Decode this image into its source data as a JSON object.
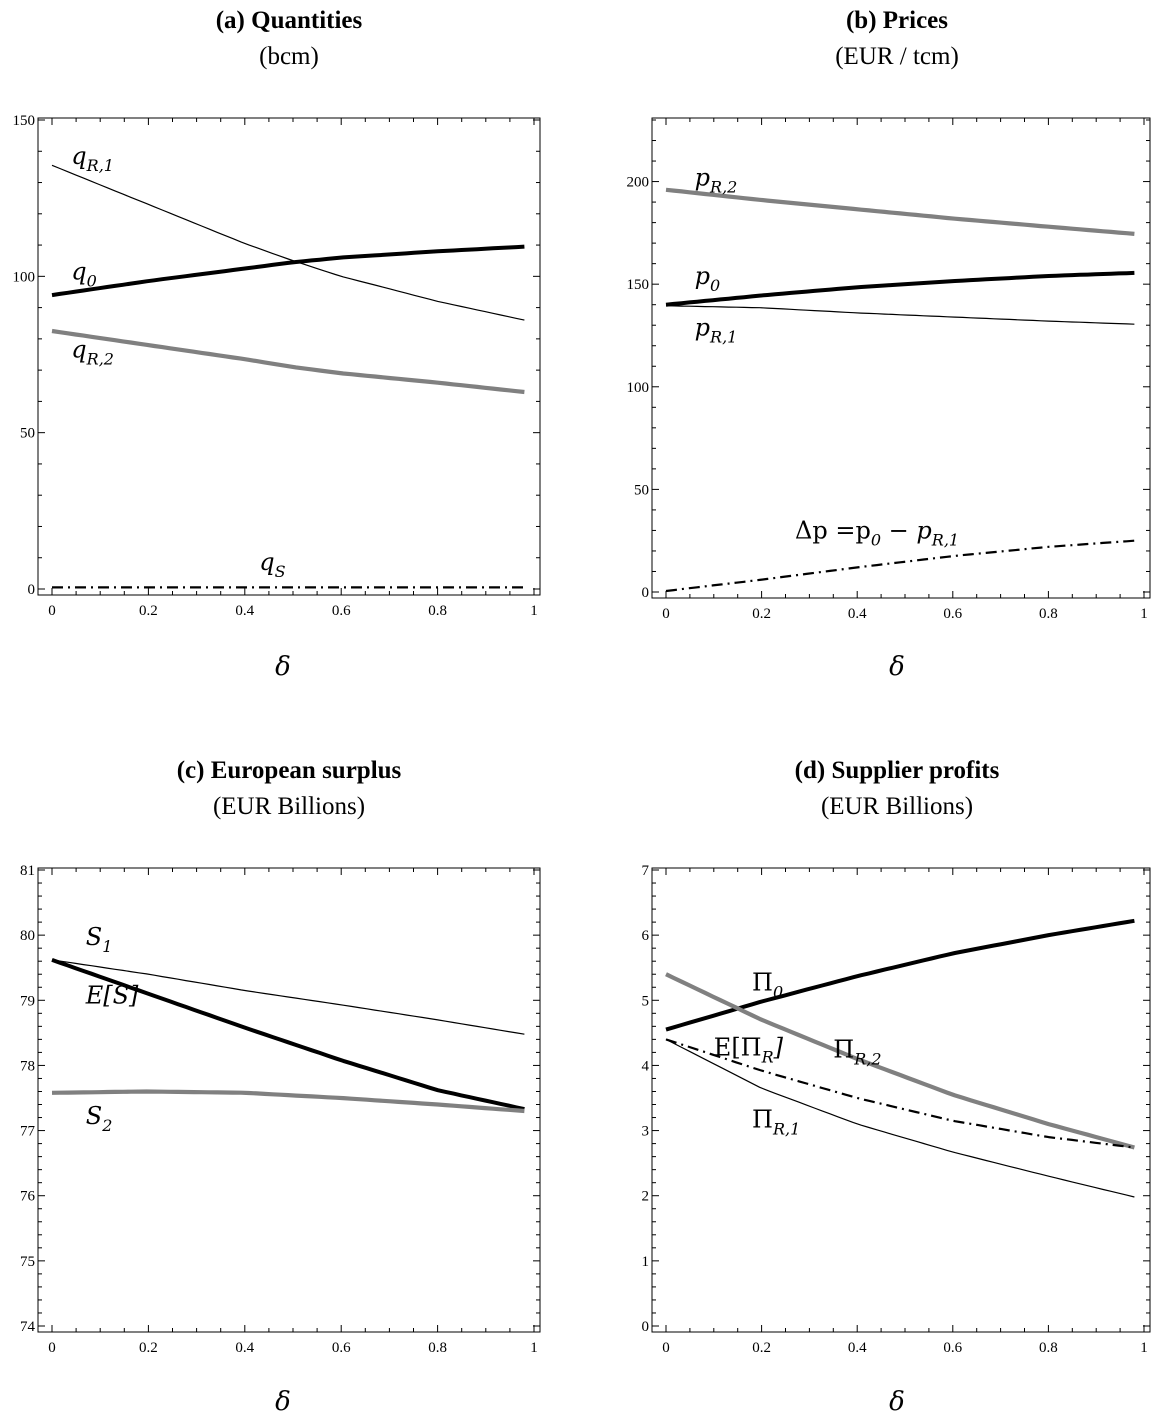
{
  "chart_data": [
    {
      "id": "a",
      "type": "line",
      "title": "(a) Quantities",
      "subtitle": "(bcm)",
      "xlabel": "δ",
      "xlim": [
        0,
        1
      ],
      "ylim": [
        0,
        150
      ],
      "xticks": [
        "0",
        "0.2",
        "0.4",
        "0.6",
        "0.8",
        "1"
      ],
      "yticks": [
        "0",
        "50",
        "100",
        "150"
      ],
      "series": [
        {
          "name": "q_{R,1}",
          "style": "thin",
          "color": "#000000",
          "x": [
            0,
            0.2,
            0.4,
            0.5,
            0.6,
            0.8,
            0.98
          ],
          "y": [
            135.5,
            123,
            110.5,
            105,
            100,
            92,
            86
          ]
        },
        {
          "name": "q_0",
          "style": "thick",
          "color": "#000000",
          "x": [
            0,
            0.2,
            0.4,
            0.5,
            0.6,
            0.8,
            0.98
          ],
          "y": [
            94,
            98.5,
            102.5,
            104.5,
            106,
            108,
            109.5
          ]
        },
        {
          "name": "q_{R,2}",
          "style": "gray",
          "color": "#808080",
          "x": [
            0,
            0.2,
            0.4,
            0.5,
            0.6,
            0.8,
            0.98
          ],
          "y": [
            82.5,
            78,
            73.5,
            71,
            69,
            66,
            63
          ]
        },
        {
          "name": "q_S",
          "style": "dashdot",
          "color": "#000000",
          "x": [
            0,
            0.98
          ],
          "y": [
            0.5,
            0.5
          ]
        }
      ],
      "annotations": [
        {
          "base": "q",
          "sub": "R,1",
          "x": 0.04,
          "y": 136
        },
        {
          "base": "q",
          "sub": "0",
          "x": 0.04,
          "y": 99
        },
        {
          "base": "q",
          "sub": "R,2",
          "x": 0.04,
          "y": 74
        },
        {
          "base": "q",
          "sub": "S",
          "x": 0.43,
          "y": 6
        }
      ]
    },
    {
      "id": "b",
      "type": "line",
      "title": "(b) Prices",
      "subtitle": "(EUR / tcm)",
      "xlabel": "δ",
      "xlim": [
        0,
        1
      ],
      "ylim": [
        0,
        230
      ],
      "xticks": [
        "0",
        "0.2",
        "0.4",
        "0.6",
        "0.8",
        "1"
      ],
      "yticks": [
        "0",
        "50",
        "100",
        "150",
        "200"
      ],
      "series": [
        {
          "name": "p_{R,2}",
          "style": "gray",
          "color": "#808080",
          "x": [
            0,
            0.2,
            0.4,
            0.6,
            0.8,
            0.98
          ],
          "y": [
            196,
            191,
            186.5,
            182,
            178,
            174.5
          ]
        },
        {
          "name": "p_0",
          "style": "thick",
          "color": "#000000",
          "x": [
            0,
            0.2,
            0.4,
            0.6,
            0.8,
            0.98
          ],
          "y": [
            140,
            144.5,
            148.5,
            151.5,
            154,
            155.5
          ]
        },
        {
          "name": "p_{R,1}",
          "style": "thin",
          "color": "#000000",
          "x": [
            0,
            0.2,
            0.4,
            0.6,
            0.8,
            0.98
          ],
          "y": [
            139.5,
            138.5,
            136,
            134,
            132,
            130.5
          ]
        },
        {
          "name": "Δp = p_0 − p_{R,1}",
          "style": "dashdot",
          "color": "#000000",
          "x": [
            0,
            0.2,
            0.4,
            0.6,
            0.8,
            0.98
          ],
          "y": [
            0.5,
            6,
            12,
            17.5,
            22,
            25
          ]
        }
      ],
      "annotations": [
        {
          "base": "p",
          "sub": "R,2",
          "x": 0.06,
          "y": 198
        },
        {
          "base": "p",
          "sub": "0",
          "x": 0.06,
          "y": 150
        },
        {
          "base": "p",
          "sub": "R,1",
          "x": 0.06,
          "y": 125
        },
        {
          "base": "Δp =p",
          "sub": "0",
          "tail": " − p",
          "sub2": "R,1",
          "x": 0.27,
          "y": 26
        }
      ]
    },
    {
      "id": "c",
      "type": "line",
      "title": "(c) European surplus",
      "subtitle": "(EUR Billions)",
      "xlabel": "δ",
      "xlim": [
        0,
        1
      ],
      "ylim": [
        74,
        81
      ],
      "xticks": [
        "0",
        "0.2",
        "0.4",
        "0.6",
        "0.8",
        "1"
      ],
      "yticks": [
        "74",
        "75",
        "76",
        "77",
        "78",
        "79",
        "80",
        "81"
      ],
      "series": [
        {
          "name": "S_1",
          "style": "thin",
          "color": "#000000",
          "x": [
            0,
            0.2,
            0.4,
            0.6,
            0.8,
            0.98
          ],
          "y": [
            79.62,
            79.4,
            79.15,
            78.93,
            78.7,
            78.48
          ]
        },
        {
          "name": "E[S]",
          "style": "thick",
          "color": "#000000",
          "x": [
            0,
            0.2,
            0.4,
            0.6,
            0.8,
            0.98
          ],
          "y": [
            79.62,
            79.1,
            78.58,
            78.08,
            77.62,
            77.33
          ]
        },
        {
          "name": "S_2",
          "style": "gray",
          "color": "#808080",
          "x": [
            0,
            0.1,
            0.2,
            0.4,
            0.6,
            0.8,
            0.98
          ],
          "y": [
            77.58,
            77.59,
            77.6,
            77.58,
            77.5,
            77.4,
            77.3
          ]
        }
      ],
      "annotations": [
        {
          "base": "S",
          "sub": "1",
          "x": 0.07,
          "y": 79.85
        },
        {
          "base": "E[S]",
          "sub": "",
          "x": 0.07,
          "y": 78.95
        },
        {
          "base": "S",
          "sub": "2",
          "x": 0.07,
          "y": 77.1
        }
      ]
    },
    {
      "id": "d",
      "type": "line",
      "title": "(d) Supplier profits",
      "subtitle": "(EUR Billions)",
      "xlabel": "δ",
      "xlim": [
        0,
        1
      ],
      "ylim": [
        0,
        7
      ],
      "xticks": [
        "0",
        "0.2",
        "0.4",
        "0.6",
        "0.8",
        "1"
      ],
      "yticks": [
        "0",
        "1",
        "2",
        "3",
        "4",
        "5",
        "6",
        "7"
      ],
      "series": [
        {
          "name": "Π_0",
          "style": "thick",
          "color": "#000000",
          "x": [
            0,
            0.2,
            0.4,
            0.6,
            0.8,
            0.98
          ],
          "y": [
            4.55,
            4.98,
            5.37,
            5.72,
            6.0,
            6.22
          ]
        },
        {
          "name": "Π_{R,2}",
          "style": "gray",
          "color": "#808080",
          "x": [
            0,
            0.2,
            0.4,
            0.6,
            0.8,
            0.98
          ],
          "y": [
            5.4,
            4.7,
            4.1,
            3.55,
            3.1,
            2.74
          ]
        },
        {
          "name": "E[Π_R]",
          "style": "dashdot",
          "color": "#000000",
          "x": [
            0,
            0.2,
            0.4,
            0.6,
            0.8,
            0.98
          ],
          "y": [
            4.4,
            3.92,
            3.5,
            3.15,
            2.9,
            2.74
          ]
        },
        {
          "name": "Π_{R,1}",
          "style": "thin",
          "color": "#000000",
          "x": [
            0,
            0.2,
            0.4,
            0.6,
            0.8,
            0.98
          ],
          "y": [
            4.4,
            3.65,
            3.1,
            2.67,
            2.3,
            1.98
          ]
        }
      ],
      "annotations": [
        {
          "base": "Π",
          "sub": "0",
          "x": 0.18,
          "y": 5.15
        },
        {
          "base": "Π",
          "sub": "R,2",
          "x": 0.35,
          "y": 4.12
        },
        {
          "base": "E[Π",
          "sub": "R",
          "tail": "]",
          "x": 0.1,
          "y": 4.15
        },
        {
          "base": "Π",
          "sub": "R,1",
          "x": 0.18,
          "y": 3.05
        }
      ]
    }
  ]
}
